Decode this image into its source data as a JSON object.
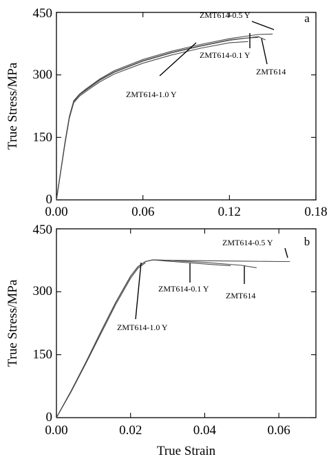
{
  "chart_data": [
    {
      "type": "line",
      "panel_label": "a",
      "xlabel": "",
      "ylabel": "True Stress/MPa",
      "xlim": [
        0,
        0.18
      ],
      "ylim": [
        0,
        450
      ],
      "xticks": [
        "0.00",
        "0.06",
        "0.12",
        "0.18"
      ],
      "yticks": [
        "0",
        "150",
        "300",
        "450"
      ],
      "grid": false,
      "series": [
        {
          "name": "ZMT614-0.5 Y",
          "x": [
            0,
            0.003,
            0.006,
            0.009,
            0.012,
            0.016,
            0.02,
            0.03,
            0.04,
            0.06,
            0.08,
            0.1,
            0.12,
            0.14,
            0.15
          ],
          "y": [
            0,
            70,
            140,
            200,
            238,
            254,
            265,
            290,
            310,
            337,
            357,
            373,
            387,
            397,
            398
          ]
        },
        {
          "name": "ZMT614-0.1 Y",
          "x": [
            0,
            0.003,
            0.006,
            0.009,
            0.012,
            0.016,
            0.02,
            0.03,
            0.04,
            0.06,
            0.08,
            0.1,
            0.12,
            0.14,
            0.145
          ],
          "y": [
            0,
            70,
            140,
            200,
            236,
            252,
            262,
            287,
            306,
            333,
            353,
            369,
            383,
            392,
            384
          ]
        },
        {
          "name": "ZMT614",
          "x": [
            0,
            0.003,
            0.006,
            0.009,
            0.012,
            0.016,
            0.02,
            0.03,
            0.04,
            0.06,
            0.08,
            0.1,
            0.12,
            0.13,
            0.14
          ],
          "y": [
            0,
            70,
            140,
            200,
            237,
            253,
            263,
            288,
            307,
            334,
            354,
            370,
            384,
            388,
            390
          ]
        },
        {
          "name": "ZMT614-1.0 Y",
          "x": [
            0,
            0.003,
            0.006,
            0.009,
            0.012,
            0.016,
            0.02,
            0.03,
            0.04,
            0.06,
            0.08,
            0.1,
            0.12,
            0.133
          ],
          "y": [
            0,
            68,
            136,
            196,
            233,
            249,
            259,
            283,
            302,
            328,
            348,
            364,
            377,
            380
          ]
        }
      ],
      "annotations": [
        "ZMT614-0.5 Y",
        "ZMT614-0.1 Y",
        "ZMT614",
        "ZMT614-1.0 Y"
      ]
    },
    {
      "type": "line",
      "panel_label": "b",
      "xlabel": "True Strain",
      "ylabel": "True Stress/MPa",
      "xlim": [
        0,
        0.07
      ],
      "ylim": [
        0,
        450
      ],
      "xticks": [
        "0.00",
        "0.02",
        "0.04",
        "0.06"
      ],
      "yticks": [
        "0",
        "150",
        "300",
        "450"
      ],
      "grid": false,
      "series": [
        {
          "name": "ZMT614-0.5 Y",
          "x": [
            0,
            0.004,
            0.008,
            0.012,
            0.016,
            0.02,
            0.022,
            0.024,
            0.026,
            0.03,
            0.04,
            0.05,
            0.06,
            0.063
          ],
          "y": [
            0,
            64,
            133,
            205,
            275,
            337,
            360,
            372,
            376,
            375,
            374,
            373,
            372,
            372
          ]
        },
        {
          "name": "ZMT614-0.1 Y",
          "x": [
            0,
            0.004,
            0.008,
            0.012,
            0.016,
            0.02,
            0.022,
            0.024,
            0.026,
            0.03,
            0.036,
            0.042,
            0.047
          ],
          "y": [
            0,
            64,
            133,
            205,
            275,
            337,
            360,
            372,
            376,
            373,
            369,
            365,
            362
          ]
        },
        {
          "name": "ZMT614",
          "x": [
            0,
            0.004,
            0.008,
            0.012,
            0.016,
            0.02,
            0.022,
            0.024,
            0.026,
            0.03,
            0.04,
            0.05,
            0.054
          ],
          "y": [
            0,
            64,
            133,
            205,
            275,
            337,
            360,
            372,
            376,
            375,
            370,
            363,
            357
          ]
        },
        {
          "name": "ZMT614-1.0 Y",
          "x": [
            0,
            0.004,
            0.008,
            0.012,
            0.016,
            0.02,
            0.022,
            0.024
          ],
          "y": [
            0,
            62,
            130,
            200,
            270,
            332,
            356,
            369
          ]
        }
      ],
      "annotations": [
        "ZMT614-0.5 Y",
        "ZMT614-0.1 Y",
        "ZMT614",
        "ZMT614-1.0 Y"
      ]
    }
  ]
}
